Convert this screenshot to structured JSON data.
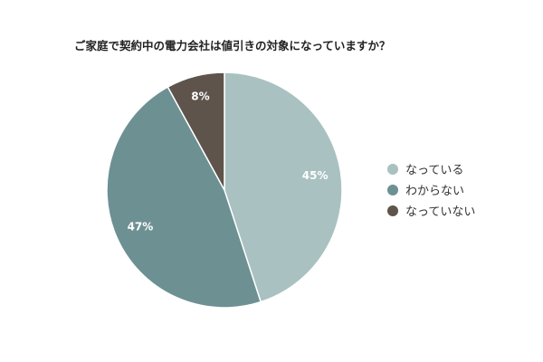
{
  "chart_data": {
    "type": "pie",
    "title": "ご家庭で契約中の電力会社は値引きの対象になっていますか？",
    "categories": [
      "なっている",
      "わからない",
      "なっていない"
    ],
    "values": [
      45,
      47,
      8
    ],
    "labels": [
      "45%",
      "47%",
      "8%"
    ],
    "colors": [
      "#a9c1c1",
      "#6d9093",
      "#5e544c"
    ],
    "start_angle_deg": 0,
    "direction": "clockwise",
    "legend_position": "right"
  }
}
